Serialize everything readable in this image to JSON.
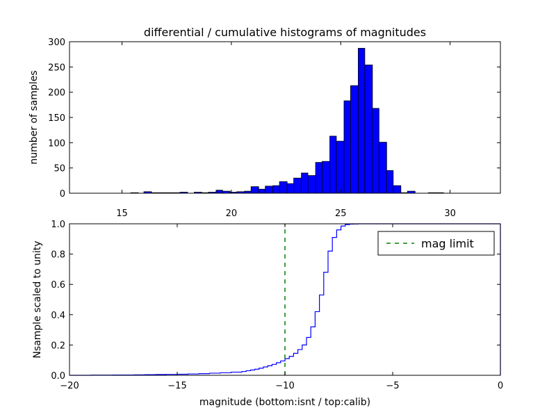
{
  "chart_data": [
    {
      "type": "bar",
      "title": "differential / cumulative histograms of magnitudes",
      "ylabel": "number of samples",
      "xlabel": "",
      "xlim": [
        12.6,
        32.3
      ],
      "ylim": [
        0,
        300
      ],
      "xticks": [
        15,
        20,
        25,
        30
      ],
      "yticks": [
        0,
        50,
        100,
        150,
        200,
        250,
        300
      ],
      "bar_color": "#0000ff",
      "bins": [
        {
          "x0": 15.4,
          "x1": 15.75,
          "v": 1
        },
        {
          "x0": 16.0,
          "x1": 16.35,
          "v": 3
        },
        {
          "x0": 16.35,
          "x1": 16.7,
          "v": 1
        },
        {
          "x0": 16.7,
          "x1": 17.0,
          "v": 1
        },
        {
          "x0": 17.0,
          "x1": 17.35,
          "v": 1
        },
        {
          "x0": 17.35,
          "x1": 17.65,
          "v": 1
        },
        {
          "x0": 17.65,
          "x1": 18.0,
          "v": 2
        },
        {
          "x0": 18.3,
          "x1": 18.65,
          "v": 2
        },
        {
          "x0": 18.65,
          "x1": 18.95,
          "v": 1
        },
        {
          "x0": 18.95,
          "x1": 19.3,
          "v": 2
        },
        {
          "x0": 19.3,
          "x1": 19.6,
          "v": 6
        },
        {
          "x0": 19.6,
          "x1": 19.95,
          "v": 4
        },
        {
          "x0": 19.95,
          "x1": 20.25,
          "v": 2
        },
        {
          "x0": 20.25,
          "x1": 20.6,
          "v": 3
        },
        {
          "x0": 20.6,
          "x1": 20.9,
          "v": 4
        },
        {
          "x0": 20.9,
          "x1": 21.25,
          "v": 13
        },
        {
          "x0": 21.25,
          "x1": 21.55,
          "v": 8
        },
        {
          "x0": 21.55,
          "x1": 21.9,
          "v": 14
        },
        {
          "x0": 21.9,
          "x1": 22.2,
          "v": 15
        },
        {
          "x0": 22.2,
          "x1": 22.55,
          "v": 23
        },
        {
          "x0": 22.55,
          "x1": 22.85,
          "v": 19
        },
        {
          "x0": 22.85,
          "x1": 23.2,
          "v": 30
        },
        {
          "x0": 23.2,
          "x1": 23.5,
          "v": 40
        },
        {
          "x0": 23.5,
          "x1": 23.85,
          "v": 35
        },
        {
          "x0": 23.85,
          "x1": 24.15,
          "v": 61
        },
        {
          "x0": 24.15,
          "x1": 24.5,
          "v": 63
        },
        {
          "x0": 24.5,
          "x1": 24.8,
          "v": 113
        },
        {
          "x0": 24.8,
          "x1": 25.15,
          "v": 103
        },
        {
          "x0": 25.15,
          "x1": 25.45,
          "v": 183
        },
        {
          "x0": 25.45,
          "x1": 25.8,
          "v": 213
        },
        {
          "x0": 25.8,
          "x1": 26.1,
          "v": 287
        },
        {
          "x0": 26.1,
          "x1": 26.45,
          "v": 254
        },
        {
          "x0": 26.45,
          "x1": 26.75,
          "v": 168
        },
        {
          "x0": 26.75,
          "x1": 27.1,
          "v": 101
        },
        {
          "x0": 27.1,
          "x1": 27.4,
          "v": 45
        },
        {
          "x0": 27.4,
          "x1": 27.75,
          "v": 15
        },
        {
          "x0": 27.75,
          "x1": 28.05,
          "v": 1
        },
        {
          "x0": 28.05,
          "x1": 28.4,
          "v": 4
        },
        {
          "x0": 29.0,
          "x1": 29.7,
          "v": 1
        }
      ]
    },
    {
      "type": "line",
      "ylabel": "Nsample scaled to unity",
      "xlabel": "magnitude (bottom:isnt / top:calib)",
      "xlim": [
        -20,
        0
      ],
      "ylim": [
        0,
        1.0
      ],
      "xticks": [
        -20,
        -15,
        -10,
        -5,
        0
      ],
      "xtick_labels": [
        "−20",
        "−15",
        "−10",
        "−5",
        "0"
      ],
      "yticks": [
        0,
        0.2,
        0.4,
        0.6,
        0.8,
        1.0
      ],
      "ytick_labels": [
        "0.0",
        "0.2",
        "0.4",
        "0.6",
        "0.8",
        "1.0"
      ],
      "series": [
        {
          "color": "#0000ff",
          "style": "steps",
          "x": [
            -20,
            -19,
            -18,
            -17,
            -16.5,
            -16,
            -15.5,
            -15,
            -14.5,
            -14,
            -13.5,
            -13,
            -12.5,
            -12,
            -11.8,
            -11.6,
            -11.4,
            -11.2,
            -11,
            -10.8,
            -10.6,
            -10.4,
            -10.2,
            -10,
            -9.8,
            -9.6,
            -9.4,
            -9.2,
            -9,
            -8.8,
            -8.6,
            -8.4,
            -8.2,
            -8,
            -7.8,
            -7.6,
            -7.4,
            -7.2,
            -7,
            -6.8,
            -6.6,
            -6.4,
            -6.2,
            0
          ],
          "y": [
            0,
            0.001,
            0.002,
            0.003,
            0.004,
            0.005,
            0.006,
            0.007,
            0.009,
            0.011,
            0.014,
            0.017,
            0.021,
            0.025,
            0.03,
            0.035,
            0.04,
            0.047,
            0.055,
            0.063,
            0.072,
            0.083,
            0.095,
            0.11,
            0.125,
            0.145,
            0.17,
            0.2,
            0.25,
            0.32,
            0.42,
            0.53,
            0.68,
            0.82,
            0.91,
            0.96,
            0.985,
            0.995,
            0.998,
            0.999,
            1.0,
            1.0,
            1.0,
            1.0
          ]
        },
        {
          "name": "mag limit",
          "color": "#008000",
          "style": "dashed-vertical",
          "x": [
            -10.0,
            -10.0
          ],
          "y": [
            0,
            1.0
          ]
        }
      ],
      "legend": {
        "location": "top-right",
        "entries": [
          "mag limit"
        ]
      }
    }
  ]
}
